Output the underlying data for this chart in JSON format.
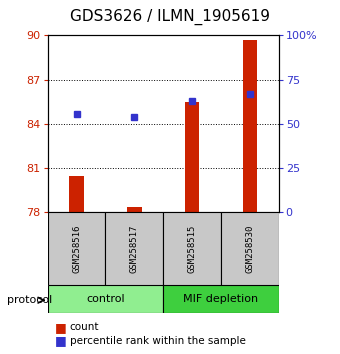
{
  "title": "GDS3626 / ILMN_1905619",
  "samples": [
    "GSM258516",
    "GSM258517",
    "GSM258515",
    "GSM258530"
  ],
  "groups": [
    {
      "label": "control",
      "color": "#90ee90",
      "samples": [
        0,
        1
      ]
    },
    {
      "label": "MIF depletion",
      "color": "#3ecf3e",
      "samples": [
        2,
        3
      ]
    }
  ],
  "bar_baseline": 78,
  "bar_tops": [
    80.5,
    78.35,
    85.5,
    89.7
  ],
  "blue_values": [
    84.7,
    84.5,
    85.55,
    86.05
  ],
  "left_ylim": [
    78,
    90
  ],
  "left_yticks": [
    78,
    81,
    84,
    87,
    90
  ],
  "right_ylabels": [
    "0",
    "25",
    "50",
    "75",
    "100%"
  ],
  "bar_color": "#cc2200",
  "blue_color": "#3333cc",
  "left_tick_color": "#cc2200",
  "right_tick_color": "#3333cc",
  "title_fontsize": 11,
  "sample_box_color": "#c8c8c8",
  "figsize": [
    3.4,
    3.54
  ],
  "dpi": 100
}
